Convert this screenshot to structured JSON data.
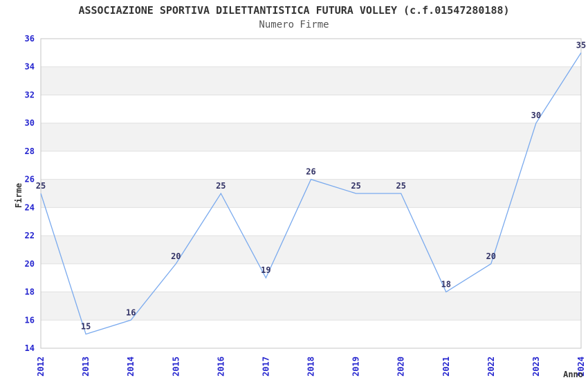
{
  "chart_data": {
    "type": "line",
    "title": "ASSOCIAZIONE SPORTIVA DILETTANTISTICA FUTURA VOLLEY (c.f.01547280188)",
    "subtitle": "Numero Firme",
    "xlabel": "Anno",
    "ylabel": "Firme",
    "categories": [
      "2012",
      "2013",
      "2014",
      "2015",
      "2016",
      "2017",
      "2018",
      "2019",
      "2020",
      "2021",
      "2022",
      "2023",
      "2024"
    ],
    "values": [
      25,
      15,
      16,
      20,
      25,
      19,
      26,
      25,
      25,
      18,
      20,
      30,
      35
    ],
    "ylim": [
      14,
      36
    ],
    "ytick_step": 2,
    "grid": "horizontal",
    "legend": "none",
    "colors": {
      "line": "#7aaaee",
      "band": "#f2f2f2",
      "gridline": "#e0e0e0",
      "plot_border": "#c4c4c4",
      "tick_label": "#2525cf",
      "data_label": "#333366",
      "title": "#333333",
      "subtitle": "#555555",
      "axis_label": "#333333",
      "background": "#ffffff"
    }
  }
}
